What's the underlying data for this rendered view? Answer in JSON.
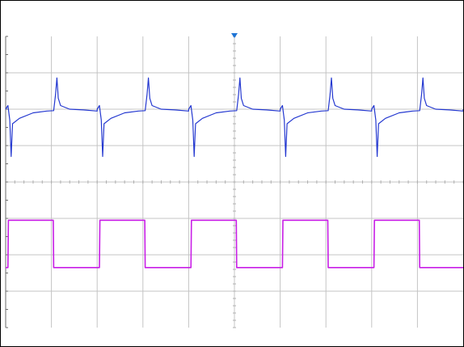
{
  "chart_data": {
    "type": "line",
    "title": "",
    "xlabel": "",
    "ylabel": "",
    "grid": true,
    "divisions": {
      "x": 10,
      "y": 8
    },
    "xlim": [
      0,
      10
    ],
    "ylim": [
      -4,
      4
    ],
    "trigger_marker": {
      "x": 5.0,
      "color": "#1e74d6"
    },
    "series": [
      {
        "color": "#2438d0",
        "period": 2.0,
        "values": [
          [
            0.0,
            2.0
          ],
          [
            0.05,
            2.1
          ],
          [
            0.09,
            1.7
          ],
          [
            0.12,
            0.7
          ],
          [
            0.15,
            1.6
          ],
          [
            0.3,
            1.75
          ],
          [
            0.6,
            1.9
          ],
          [
            0.9,
            1.95
          ],
          [
            1.05,
            1.96
          ],
          [
            1.09,
            2.4
          ],
          [
            1.12,
            2.86
          ],
          [
            1.15,
            2.3
          ],
          [
            1.2,
            2.1
          ],
          [
            1.4,
            2.0
          ],
          [
            1.7,
            1.98
          ],
          [
            2.0,
            1.95
          ]
        ]
      },
      {
        "color": "#c81ee6",
        "period": 2.0,
        "values": [
          [
            0.0,
            -2.35
          ],
          [
            0.05,
            -2.35
          ],
          [
            0.06,
            -1.05
          ],
          [
            1.04,
            -1.05
          ],
          [
            1.05,
            -2.35
          ],
          [
            2.0,
            -2.35
          ]
        ]
      }
    ]
  }
}
